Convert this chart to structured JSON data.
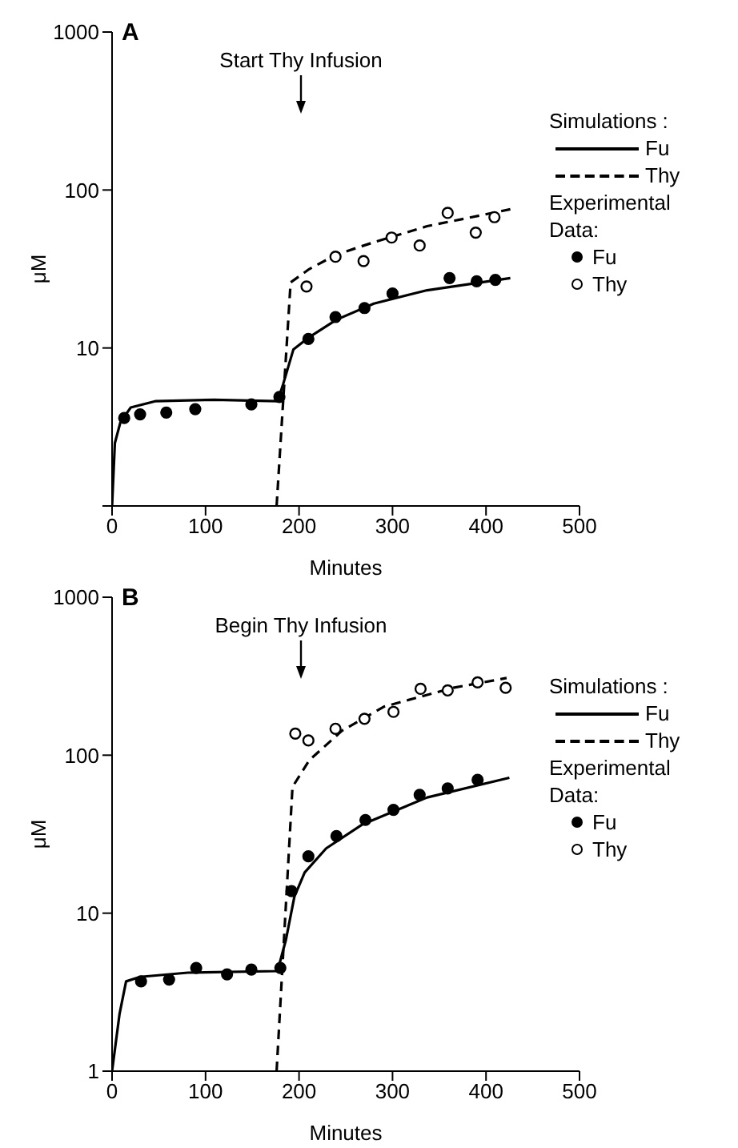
{
  "chart_data": [
    {
      "type": "line",
      "title": "A",
      "xlabel": "Minutes",
      "ylabel": "μM",
      "log": true,
      "xlim": [
        0,
        500
      ],
      "xticks": [
        0,
        100,
        200,
        300,
        400,
        500
      ],
      "ylim": [
        1,
        1000
      ],
      "yticks": [
        {
          "value": 1,
          "label": null
        },
        10,
        100,
        1000
      ],
      "legend": "right",
      "legend_title": "Simulations :",
      "annotations": [
        "Start Thy Infusion",
        "Experimental Data:"
      ],
      "series": [
        {
          "name": "Fu",
          "line_style": "solid",
          "color": "#000000",
          "x": [
            0,
            3,
            9,
            20,
            46,
            109,
            177,
            183,
            194,
            209,
            240,
            280,
            337,
            426
          ],
          "values": [
            1,
            2.5,
            3.4,
            4.2,
            4.6,
            4.7,
            4.6,
            5.9,
            9.8,
            11.5,
            15.1,
            19.1,
            23.2,
            27.7
          ]
        },
        {
          "name": "Thy",
          "line_style": "dashed",
          "color": "#000000",
          "x": [
            176,
            191,
            211,
            240,
            280,
            337,
            426
          ],
          "values": [
            1,
            26,
            31.6,
            39,
            46.7,
            59,
            75.5
          ]
        },
        {
          "name": "Fu",
          "type": "scatter",
          "marker": "circle",
          "color": "#000000",
          "x": [
            13,
            30,
            58,
            89,
            149,
            179,
            210,
            239,
            270,
            300,
            361,
            390,
            410
          ],
          "values": [
            3.6,
            3.8,
            3.9,
            4.1,
            4.4,
            4.9,
            11.4,
            15.7,
            17.9,
            22.1,
            27.7,
            26.4,
            27
          ]
        },
        {
          "name": "Thy",
          "type": "scatter",
          "marker": "circle",
          "color": "#ffffff",
          "x": [
            208,
            239,
            269,
            299,
            329,
            359,
            389,
            409
          ],
          "values": [
            24.5,
            37.8,
            35.5,
            50,
            44.5,
            71.6,
            53.7,
            67.3
          ]
        }
      ]
    },
    {
      "type": "line",
      "title": "B",
      "xlabel": "Minutes",
      "ylabel": "μM",
      "log": true,
      "xlim": [
        0,
        500
      ],
      "xticks": [
        0,
        100,
        200,
        300,
        400,
        500
      ],
      "ylim": [
        1,
        1000
      ],
      "yticks": [
        1,
        10,
        100,
        1000
      ],
      "legend": "right",
      "legend_title": "Simulations :",
      "annotations": [
        "Begin Thy Infusion",
        "Experimental Data:"
      ],
      "series": [
        {
          "name": "Fu",
          "line_style": "solid",
          "color": "#000000",
          "x": [
            0,
            8,
            15,
            30,
            81,
            177,
            186,
            195,
            206,
            229,
            268,
            337,
            425
          ],
          "values": [
            1,
            2.3,
            3.7,
            3.95,
            4.2,
            4.3,
            6.8,
            12.7,
            18.1,
            25.7,
            36.5,
            54,
            72
          ]
        },
        {
          "name": "Thy",
          "line_style": "dashed",
          "color": "#000000",
          "x": [
            176,
            193,
            211,
            246,
            291,
            365,
            422
          ],
          "values": [
            1,
            63,
            93,
            143,
            203,
            267,
            308
          ]
        },
        {
          "name": "Fu",
          "type": "scatter",
          "marker": "circle",
          "color": "#000000",
          "x": [
            31,
            61,
            90,
            123,
            149,
            180,
            192,
            210,
            240,
            271,
            301,
            329,
            359,
            391
          ],
          "values": [
            3.7,
            3.8,
            4.5,
            4.1,
            4.4,
            4.5,
            13.8,
            22.9,
            30.8,
            38.9,
            45.1,
            56.1,
            61.6,
            69.8
          ]
        },
        {
          "name": "Thy",
          "type": "scatter",
          "marker": "circle",
          "color": "#ffffff",
          "x": [
            196,
            210,
            239,
            270,
            301,
            330,
            359,
            391,
            421
          ],
          "values": [
            137,
            124,
            147,
            170,
            188,
            263,
            257,
            289,
            267
          ]
        }
      ]
    }
  ]
}
